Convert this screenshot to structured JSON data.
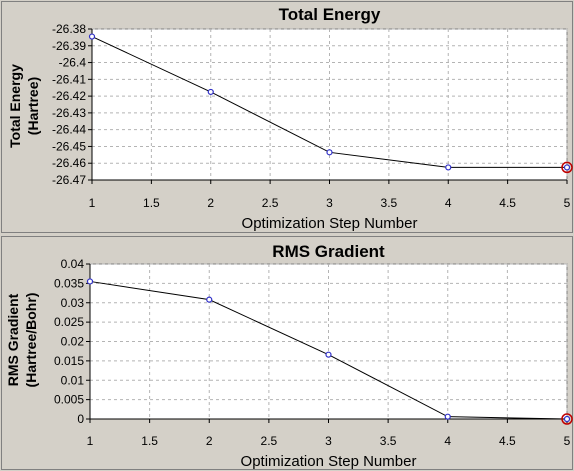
{
  "colors": {
    "background": "#d4d0c8",
    "plot_bg": "#ffffff",
    "grid": "#b4b4b4",
    "line": "#000000",
    "marker": "#3030c8",
    "highlight": "#c00000"
  },
  "chart_data": [
    {
      "type": "line",
      "title": "Total Energy",
      "xlabel": "Optimization Step Number",
      "ylabel_lines": [
        "Total Energy",
        "(Hartree)"
      ],
      "x": [
        1,
        2,
        3,
        4,
        5
      ],
      "series": [
        {
          "values": [
            -26.3845,
            -26.4175,
            -26.4535,
            -26.4625,
            -26.4625
          ]
        }
      ],
      "xlim": [
        1,
        5
      ],
      "ylim": [
        -26.47,
        -26.38
      ],
      "xticks": [
        1,
        1.5,
        2,
        2.5,
        3,
        3.5,
        4,
        4.5,
        5
      ],
      "xtick_labels": [
        "1",
        "1.5",
        "2",
        "2.5",
        "3",
        "3.5",
        "4",
        "4.5",
        "5"
      ],
      "yticks": [
        -26.38,
        -26.39,
        -26.4,
        -26.41,
        -26.42,
        -26.43,
        -26.44,
        -26.45,
        -26.46,
        -26.47
      ],
      "ytick_labels": [
        "-26.38",
        "-26.39",
        "-26.4",
        "-26.41",
        "-26.42",
        "-26.43",
        "-26.44",
        "-26.45",
        "-26.46",
        "-26.47"
      ],
      "grid": true,
      "highlighted_point_index": 4
    },
    {
      "type": "line",
      "title": "RMS Gradient",
      "xlabel": "Optimization Step Number",
      "ylabel_lines": [
        "RMS Gradient",
        "(Hartree/Bohr)"
      ],
      "x": [
        1,
        2,
        3,
        4,
        5
      ],
      "series": [
        {
          "values": [
            0.0355,
            0.0308,
            0.0166,
            0.0006,
            0.0
          ]
        }
      ],
      "xlim": [
        1,
        5
      ],
      "ylim": [
        0,
        0.04
      ],
      "xticks": [
        1,
        1.5,
        2,
        2.5,
        3,
        3.5,
        4,
        4.5,
        5
      ],
      "xtick_labels": [
        "1",
        "1.5",
        "2",
        "2.5",
        "3",
        "3.5",
        "4",
        "4.5",
        "5"
      ],
      "yticks": [
        0,
        0.005,
        0.01,
        0.015,
        0.02,
        0.025,
        0.03,
        0.035,
        0.04
      ],
      "ytick_labels": [
        "0",
        "0.005",
        "0.01",
        "0.015",
        "0.02",
        "0.025",
        "0.03",
        "0.035",
        "0.04"
      ],
      "grid": true,
      "highlighted_point_index": 4
    }
  ]
}
